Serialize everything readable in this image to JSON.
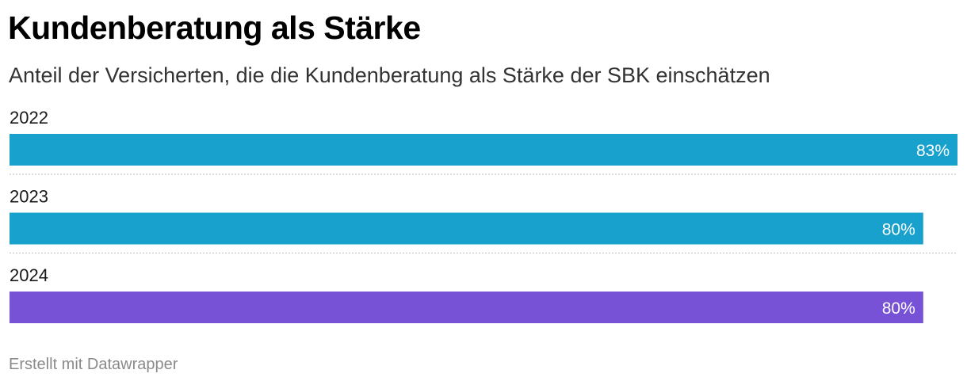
{
  "header": {
    "title": "Kundenberatung als Stärke",
    "subtitle": "Anteil der Versicherten, die die Kundenberatung als Stärke der SBK einschätzen"
  },
  "footer": {
    "credit": "Erstellt mit Datawrapper"
  },
  "chart_data": {
    "type": "bar",
    "orientation": "horizontal",
    "categories": [
      "2022",
      "2023",
      "2024"
    ],
    "values": [
      83,
      80,
      80
    ],
    "value_labels": [
      "83%",
      "80%",
      "80%"
    ],
    "unit": "%",
    "xlim": [
      0,
      83
    ],
    "bar_colors": [
      "#18a1cd",
      "#18a1cd",
      "#7752d6"
    ],
    "label_color": "#ffffff",
    "separator": "dotted",
    "grid": false,
    "legend": "none"
  }
}
